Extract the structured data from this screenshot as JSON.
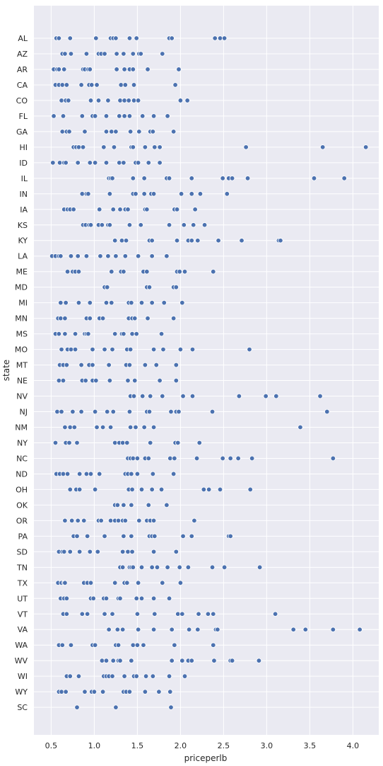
{
  "chart_data": {
    "type": "scatter",
    "xlabel": "priceperlb",
    "ylabel": "state",
    "xlim": [
      0.3,
      4.3
    ],
    "xticks": [
      0.5,
      1.0,
      1.5,
      2.0,
      2.5,
      3.0,
      3.5,
      4.0
    ],
    "xtick_labels": [
      "0.5",
      "1.0",
      "1.5",
      "2.0",
      "2.5",
      "3.0",
      "3.5",
      "4.0"
    ],
    "grid": true,
    "legend": "none",
    "background_color": "#eaeaf2",
    "point_color": "#4c72b0",
    "states": [
      "AL",
      "AZ",
      "AR",
      "CA",
      "CO",
      "FL",
      "GA",
      "HI",
      "ID",
      "IL",
      "IN",
      "IA",
      "KS",
      "KY",
      "LA",
      "ME",
      "MD",
      "MI",
      "MN",
      "MS",
      "MO",
      "MT",
      "NE",
      "NV",
      "NJ",
      "NM",
      "NY",
      "NC",
      "ND",
      "OH",
      "OK",
      "OR",
      "PA",
      "SD",
      "TN",
      "TX",
      "UT",
      "VT",
      "VA",
      "WA",
      "WV",
      "WI",
      "WY",
      "SC"
    ],
    "points": [
      {
        "state": "AL",
        "x": [
          0.56,
          0.59,
          0.72,
          1.02,
          1.19,
          1.22,
          1.25,
          1.41,
          1.49,
          1.87,
          1.9,
          2.4,
          2.46,
          2.51
        ]
      },
      {
        "state": "AZ",
        "x": [
          0.63,
          0.66,
          0.73,
          0.91,
          1.05,
          1.08,
          1.12,
          1.26,
          1.34,
          1.45,
          1.52,
          1.54,
          1.79
        ]
      },
      {
        "state": "AR",
        "x": [
          0.53,
          0.57,
          0.59,
          0.65,
          0.87,
          0.89,
          0.93,
          0.95,
          1.26,
          1.35,
          1.41,
          1.45,
          1.62,
          1.98
        ]
      },
      {
        "state": "CA",
        "x": [
          0.55,
          0.59,
          0.63,
          0.68,
          0.85,
          0.94,
          0.97,
          1.03,
          1.31,
          1.36,
          1.46,
          1.94
        ]
      },
      {
        "state": "CO",
        "x": [
          0.62,
          0.67,
          0.7,
          0.96,
          1.05,
          1.16,
          1.3,
          1.35,
          1.4,
          1.46,
          1.51,
          2.0,
          2.08
        ]
      },
      {
        "state": "FL",
        "x": [
          0.53,
          0.64,
          0.86,
          0.98,
          1.01,
          1.14,
          1.29,
          1.35,
          1.41,
          1.56,
          1.69,
          1.85
        ]
      },
      {
        "state": "GA",
        "x": [
          0.63,
          0.68,
          0.71,
          0.89,
          1.14,
          1.2,
          1.25,
          1.42,
          1.52,
          1.65,
          1.68,
          1.92
        ]
      },
      {
        "state": "HI",
        "x": [
          0.76,
          0.79,
          0.82,
          0.87,
          1.11,
          1.23,
          1.43,
          1.45,
          1.59,
          1.7,
          1.76,
          2.76,
          3.65,
          4.15
        ]
      },
      {
        "state": "ID",
        "x": [
          0.52,
          0.6,
          0.65,
          0.67,
          0.81,
          0.95,
          1.01,
          1.14,
          1.29,
          1.34,
          1.48,
          1.51,
          1.63,
          1.76
        ]
      },
      {
        "state": "IL",
        "x": [
          1.17,
          1.19,
          1.21,
          1.45,
          1.58,
          1.84,
          1.87,
          2.13,
          2.49,
          2.56,
          2.6,
          2.78,
          3.55,
          3.9
        ]
      },
      {
        "state": "IN",
        "x": [
          0.86,
          0.91,
          0.93,
          1.18,
          1.45,
          1.48,
          1.58,
          1.66,
          1.69,
          2.01,
          2.13,
          2.23,
          2.54
        ]
      },
      {
        "state": "IA",
        "x": [
          0.65,
          0.69,
          0.72,
          0.76,
          1.06,
          1.22,
          1.3,
          1.36,
          1.39,
          1.59,
          1.61,
          1.93,
          1.96,
          2.17
        ]
      },
      {
        "state": "KS",
        "x": [
          0.87,
          0.9,
          0.94,
          0.96,
          1.05,
          1.09,
          1.16,
          1.18,
          1.41,
          1.54,
          1.87,
          2.04,
          2.15,
          2.28
        ]
      },
      {
        "state": "KY",
        "x": [
          1.24,
          1.32,
          1.37,
          1.64,
          1.67,
          1.96,
          2.09,
          2.13,
          2.2,
          2.44,
          2.71,
          3.14,
          3.16
        ]
      },
      {
        "state": "LA",
        "x": [
          0.51,
          0.55,
          0.59,
          0.61,
          0.73,
          0.81,
          0.91,
          1.07,
          1.16,
          1.25,
          1.36,
          1.51,
          1.67,
          1.84
        ]
      },
      {
        "state": "ME",
        "x": [
          0.69,
          0.75,
          0.78,
          0.82,
          1.2,
          1.31,
          1.34,
          1.57,
          1.61,
          1.96,
          1.99,
          2.05,
          2.38
        ]
      },
      {
        "state": "MD",
        "x": [
          1.12,
          1.15,
          1.61,
          1.64,
          1.92,
          1.95
        ]
      },
      {
        "state": "MI",
        "x": [
          0.61,
          0.67,
          0.82,
          0.95,
          1.14,
          1.2,
          1.4,
          1.43,
          1.55,
          1.67,
          1.81,
          2.02
        ]
      },
      {
        "state": "MN",
        "x": [
          0.58,
          0.61,
          0.66,
          0.91,
          0.95,
          1.06,
          1.1,
          1.4,
          1.44,
          1.47,
          1.62,
          1.92
        ]
      },
      {
        "state": "MS",
        "x": [
          0.55,
          0.59,
          0.66,
          0.78,
          0.89,
          0.91,
          0.93,
          1.24,
          1.32,
          1.34,
          1.44,
          1.49,
          1.78
        ]
      },
      {
        "state": "MO",
        "x": [
          0.62,
          0.69,
          0.73,
          0.78,
          0.98,
          1.12,
          1.21,
          1.38,
          1.42,
          1.69,
          1.8,
          2.0,
          2.14,
          2.8
        ]
      },
      {
        "state": "MT",
        "x": [
          0.6,
          0.64,
          0.68,
          0.85,
          0.94,
          0.98,
          1.17,
          1.37,
          1.41,
          1.59,
          1.72,
          1.95
        ]
      },
      {
        "state": "NE",
        "x": [
          0.59,
          0.64,
          0.86,
          0.9,
          0.98,
          1.02,
          1.18,
          1.39,
          1.47,
          1.76,
          1.95
        ]
      },
      {
        "state": "NV",
        "x": [
          1.42,
          1.46,
          1.56,
          1.65,
          1.79,
          2.03,
          2.14,
          2.68,
          2.99,
          3.11,
          3.62
        ]
      },
      {
        "state": "NJ",
        "x": [
          0.57,
          0.62,
          0.75,
          0.85,
          1.01,
          1.15,
          1.22,
          1.41,
          1.61,
          1.64,
          1.89,
          1.95,
          1.98,
          2.37,
          3.7
        ]
      },
      {
        "state": "NM",
        "x": [
          0.66,
          0.72,
          0.77,
          1.03,
          1.1,
          1.19,
          1.42,
          1.48,
          1.58,
          1.69,
          3.39
        ]
      },
      {
        "state": "NY",
        "x": [
          0.55,
          0.67,
          0.71,
          0.8,
          1.24,
          1.29,
          1.33,
          1.38,
          1.65,
          1.94,
          1.97,
          2.22
        ]
      },
      {
        "state": "NC",
        "x": [
          1.39,
          1.42,
          1.45,
          1.5,
          1.59,
          1.63,
          1.88,
          1.93,
          2.19,
          2.49,
          2.58,
          2.67,
          2.83,
          3.77
        ]
      },
      {
        "state": "ND",
        "x": [
          0.56,
          0.6,
          0.64,
          0.69,
          0.83,
          0.91,
          0.96,
          1.06,
          1.36,
          1.39,
          1.43,
          1.5,
          1.68,
          1.92
        ]
      },
      {
        "state": "OH",
        "x": [
          0.72,
          0.79,
          0.83,
          1.01,
          1.4,
          1.44,
          1.55,
          1.67,
          1.78,
          2.27,
          2.33,
          2.46,
          2.81
        ]
      },
      {
        "state": "OK",
        "x": [
          1.24,
          1.27,
          1.34,
          1.43,
          1.63,
          1.84
        ]
      },
      {
        "state": "OR",
        "x": [
          0.66,
          0.74,
          0.81,
          0.88,
          1.05,
          1.08,
          1.19,
          1.24,
          1.28,
          1.33,
          1.36,
          1.52,
          1.61,
          1.65,
          1.69,
          2.16
        ]
      },
      {
        "state": "PA",
        "x": [
          0.76,
          0.8,
          0.92,
          1.12,
          1.34,
          1.43,
          1.64,
          1.67,
          1.7,
          2.03,
          2.13,
          2.56,
          2.58
        ]
      },
      {
        "state": "SD",
        "x": [
          0.59,
          0.63,
          0.65,
          0.72,
          0.83,
          0.95,
          1.04,
          1.33,
          1.39,
          1.44,
          1.69,
          1.95
        ]
      },
      {
        "state": "TN",
        "x": [
          1.3,
          1.33,
          1.41,
          1.43,
          1.45,
          1.55,
          1.67,
          1.73,
          1.85,
          1.99,
          2.09,
          2.37,
          2.51,
          2.92
        ]
      },
      {
        "state": "TX",
        "x": [
          0.58,
          0.62,
          0.65,
          0.66,
          0.88,
          0.92,
          0.96,
          1.24,
          1.35,
          1.38,
          1.51,
          1.79,
          2.0
        ]
      },
      {
        "state": "UT",
        "x": [
          0.61,
          0.65,
          0.68,
          0.96,
          0.99,
          1.11,
          1.14,
          1.28,
          1.3,
          1.49,
          1.55,
          1.69,
          1.87
        ]
      },
      {
        "state": "VT",
        "x": [
          0.64,
          0.68,
          0.86,
          0.92,
          1.12,
          1.21,
          1.5,
          1.7,
          1.97,
          2.02,
          2.21,
          2.32,
          2.38,
          3.1
        ]
      },
      {
        "state": "VA",
        "x": [
          1.17,
          1.27,
          1.33,
          1.51,
          1.69,
          1.9,
          2.1,
          2.2,
          2.41,
          2.43,
          3.31,
          3.45,
          3.77,
          4.08
        ]
      },
      {
        "state": "WA",
        "x": [
          0.59,
          0.63,
          0.73,
          0.98,
          1.01,
          1.25,
          1.28,
          1.45,
          1.5,
          1.57,
          1.93,
          2.38
        ]
      },
      {
        "state": "WV",
        "x": [
          1.09,
          1.14,
          1.22,
          1.28,
          1.3,
          1.43,
          1.9,
          2.02,
          2.09,
          2.13,
          2.39,
          2.58,
          2.6,
          2.91
        ]
      },
      {
        "state": "WI",
        "x": [
          0.68,
          0.72,
          0.82,
          1.11,
          1.14,
          1.17,
          1.21,
          1.35,
          1.46,
          1.49,
          1.6,
          1.68,
          1.87,
          2.05
        ]
      },
      {
        "state": "WY",
        "x": [
          0.59,
          0.62,
          0.67,
          0.89,
          0.97,
          1.0,
          1.1,
          1.34,
          1.37,
          1.41,
          1.59,
          1.75,
          1.88
        ]
      },
      {
        "state": "SC",
        "x": [
          0.8,
          1.25,
          1.89
        ]
      }
    ]
  }
}
